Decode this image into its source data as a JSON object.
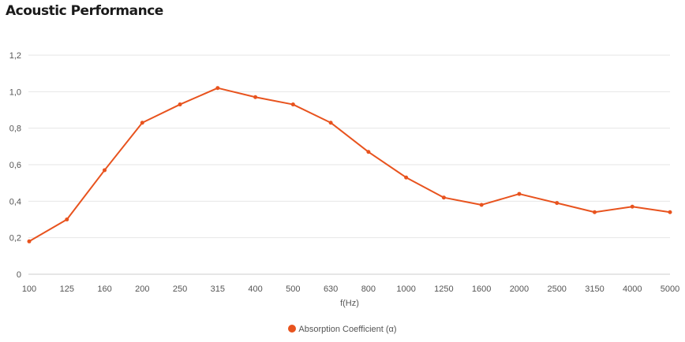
{
  "chart_data": {
    "type": "line",
    "title": "Acoustic Performance",
    "xlabel": "f(Hz)",
    "ylabel": "",
    "categories": [
      "100",
      "125",
      "160",
      "200",
      "250",
      "315",
      "400",
      "500",
      "630",
      "800",
      "1000",
      "1250",
      "1600",
      "2000",
      "2500",
      "3150",
      "4000",
      "5000"
    ],
    "series": [
      {
        "name": "Absorption Coefficient (α)",
        "color": "#e8531e",
        "values": [
          0.18,
          0.3,
          0.57,
          0.83,
          0.93,
          1.02,
          0.97,
          0.93,
          0.83,
          0.67,
          0.53,
          0.42,
          0.38,
          0.44,
          0.39,
          0.34,
          0.37,
          0.34
        ]
      }
    ],
    "ylim": [
      0,
      1.2
    ],
    "yticks": [
      "0",
      "0,2",
      "0,4",
      "0,6",
      "0,8",
      "1,0",
      "1,2"
    ],
    "grid": true,
    "legend_position": "bottom"
  }
}
